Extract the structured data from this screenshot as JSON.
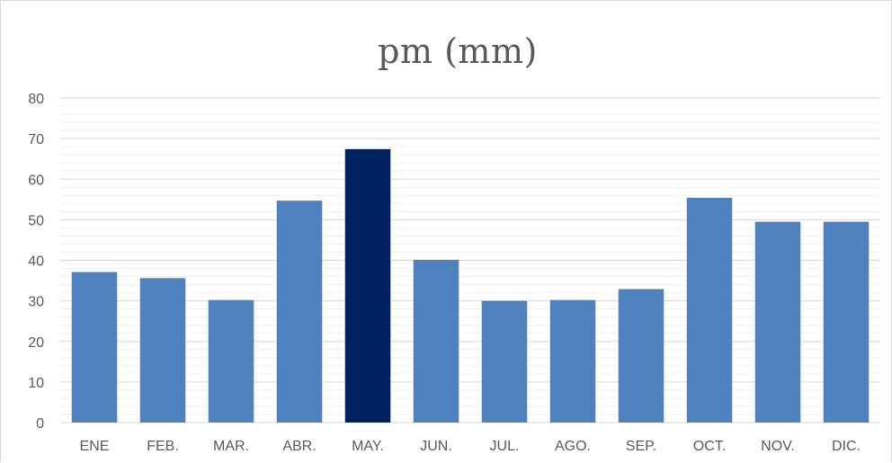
{
  "chart_data": {
    "type": "bar",
    "title": "pm (mm)",
    "xlabel": "",
    "ylabel": "",
    "categories": [
      "ENE",
      "FEB.",
      "MAR.",
      "ABR.",
      "MAY.",
      "JUN.",
      "JUL.",
      "AGO.",
      "SEP.",
      "OCT.",
      "NOV.",
      "DIC."
    ],
    "values": [
      37.1,
      35.6,
      30.2,
      54.7,
      67.4,
      40.1,
      30.0,
      30.2,
      32.9,
      55.4,
      49.5,
      49.5
    ],
    "highlight_index": 4,
    "ylim": [
      0,
      80
    ],
    "yticks": [
      0,
      10,
      20,
      30,
      40,
      50,
      60,
      70,
      80
    ],
    "grid": true,
    "legend": "none",
    "colors": {
      "bar": "#4f81bd",
      "highlight": "#002060",
      "grid": "#d9d9d9",
      "text": "#595959"
    }
  }
}
